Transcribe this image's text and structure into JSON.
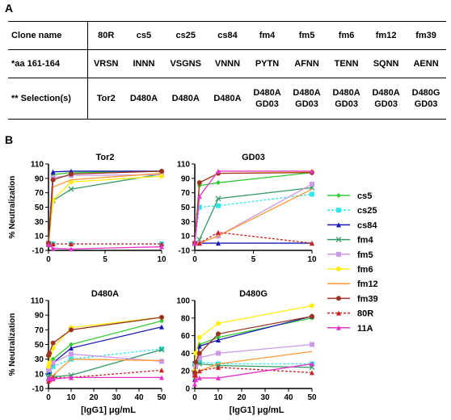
{
  "panel_a_label": "A",
  "panel_b_label": "B",
  "table": {
    "row_headers": [
      "Clone name",
      "*aa 161-164",
      "** Selection(s)"
    ],
    "clones": [
      "80R",
      "cs5",
      "cs25",
      "cs84",
      "fm4",
      "fm5",
      "fm6",
      "fm12",
      "fm39"
    ],
    "aa": [
      "VRSN",
      "INNN",
      "VSGNS",
      "VNNN",
      "PYTN",
      "AFNN",
      "TENN",
      "SQNN",
      "AENN"
    ],
    "selection": [
      [
        "Tor2"
      ],
      [
        "D480A"
      ],
      [
        "D480A"
      ],
      [
        "D480A"
      ],
      [
        "D480A",
        "GD03"
      ],
      [
        "D480A",
        "GD03"
      ],
      [
        "D480A",
        "GD03"
      ],
      [
        "D480A",
        "GD03"
      ],
      [
        "D480G",
        "GD03"
      ]
    ]
  },
  "legend": [
    {
      "name": "cs5",
      "color": "#33cc33",
      "dash": false,
      "marker": "diamond"
    },
    {
      "name": "cs25",
      "color": "#33e6e6",
      "dash": true,
      "marker": "square"
    },
    {
      "name": "cs84",
      "color": "#1a1ab3",
      "dash": false,
      "marker": "triangle"
    },
    {
      "name": "fm4",
      "color": "#339966",
      "dash": false,
      "marker": "x"
    },
    {
      "name": "fm5",
      "color": "#cc99e6",
      "dash": false,
      "marker": "square"
    },
    {
      "name": "fm6",
      "color": "#ffee11",
      "dash": false,
      "marker": "circle"
    },
    {
      "name": "fm12",
      "color": "#ff9933",
      "dash": false,
      "marker": "line"
    },
    {
      "name": "fm39",
      "color": "#993322",
      "dash": false,
      "marker": "circle"
    },
    {
      "name": "80R",
      "color": "#cc2222",
      "dash": true,
      "marker": "triangle"
    },
    {
      "name": "11A",
      "color": "#e633cc",
      "dash": false,
      "marker": "triangle"
    }
  ],
  "chart_data": [
    {
      "type": "line",
      "title": "Tor2",
      "ylabel": "% Neutralization",
      "xlabel": "",
      "xlim": [
        0,
        10
      ],
      "ylim": [
        -10,
        110
      ],
      "xticks": [
        0,
        5,
        10
      ],
      "yticks": [
        -10,
        10,
        30,
        50,
        70,
        90,
        110
      ],
      "x": [
        0,
        0.4,
        2,
        10
      ],
      "series": [
        {
          "name": "cs5",
          "values": [
            0,
            95,
            98,
            100
          ]
        },
        {
          "name": "cs25",
          "values": [
            -1,
            -1,
            -1,
            -1
          ]
        },
        {
          "name": "cs84",
          "values": [
            0,
            99,
            100,
            100
          ]
        },
        {
          "name": "fm4",
          "values": [
            0,
            59,
            75,
            96
          ]
        },
        {
          "name": "fm5",
          "values": [
            0,
            91,
            94,
            95
          ]
        },
        {
          "name": "fm6",
          "values": [
            0,
            60,
            85,
            93
          ]
        },
        {
          "name": "fm12",
          "values": [
            0,
            78,
            88,
            97
          ]
        },
        {
          "name": "fm39",
          "values": [
            0,
            88,
            96,
            100
          ]
        },
        {
          "name": "80R",
          "values": [
            -1,
            -1,
            -1,
            -1
          ]
        },
        {
          "name": "11A",
          "values": [
            -2,
            -7,
            -8,
            -5
          ]
        }
      ]
    },
    {
      "type": "line",
      "title": "GD03",
      "ylabel": "",
      "xlabel": "",
      "xlim": [
        0,
        10
      ],
      "ylim": [
        -10,
        110
      ],
      "xticks": [
        0,
        5,
        10
      ],
      "yticks": [
        -10,
        10,
        30,
        50,
        70,
        90,
        110
      ],
      "x": [
        0,
        0.4,
        2,
        10
      ],
      "series": [
        {
          "name": "cs5",
          "values": [
            0,
            80,
            84,
            98
          ]
        },
        {
          "name": "cs25",
          "values": [
            0,
            50,
            52,
            68
          ]
        },
        {
          "name": "cs84",
          "values": [
            0,
            0,
            0,
            0
          ]
        },
        {
          "name": "fm4",
          "values": [
            0,
            5,
            62,
            77
          ]
        },
        {
          "name": "fm5",
          "values": [
            0,
            0,
            10,
            82
          ]
        },
        {
          "name": "fm6",
          "values": [
            0,
            84,
            97,
            99
          ]
        },
        {
          "name": "fm12",
          "values": [
            0,
            0,
            10,
            75
          ]
        },
        {
          "name": "fm39",
          "values": [
            0,
            84,
            97,
            98
          ]
        },
        {
          "name": "80R",
          "values": [
            0,
            0,
            15,
            0
          ]
        },
        {
          "name": "11A",
          "values": [
            0,
            65,
            100,
            100
          ]
        }
      ]
    },
    {
      "type": "line",
      "title": "D480A",
      "ylabel": "% Neutralization",
      "xlabel": "[IgG1] μg/mL",
      "xlim": [
        0,
        50
      ],
      "ylim": [
        -10,
        110
      ],
      "xticks": [
        0,
        10,
        20,
        30,
        40,
        50
      ],
      "yticks": [
        -10,
        10,
        30,
        50,
        70,
        90,
        110
      ],
      "x": [
        0,
        0.4,
        2,
        10,
        50
      ],
      "series": [
        {
          "name": "cs5",
          "values": [
            12,
            15,
            30,
            50,
            82
          ]
        },
        {
          "name": "cs25",
          "values": [
            10,
            12,
            20,
            30,
            44
          ]
        },
        {
          "name": "cs84",
          "values": [
            12,
            14,
            25,
            45,
            74
          ]
        },
        {
          "name": "fm4",
          "values": [
            5,
            8,
            6,
            8,
            43
          ]
        },
        {
          "name": "fm5",
          "values": [
            15,
            18,
            25,
            37,
            27
          ]
        },
        {
          "name": "fm6",
          "values": [
            20,
            25,
            45,
            73,
            87
          ]
        },
        {
          "name": "fm12",
          "values": [
            2,
            5,
            8,
            30,
            28
          ]
        },
        {
          "name": "fm39",
          "values": [
            35,
            38,
            52,
            70,
            87
          ]
        },
        {
          "name": "80R",
          "values": [
            0,
            2,
            5,
            5,
            15
          ]
        },
        {
          "name": "11A",
          "values": [
            3,
            5,
            3,
            5,
            5
          ]
        }
      ]
    },
    {
      "type": "line",
      "title": "D480G",
      "ylabel": "",
      "xlabel": "[IgG1] μg/mL",
      "xlim": [
        0,
        50
      ],
      "ylim": [
        0,
        100
      ],
      "xticks": [
        0,
        10,
        20,
        30,
        40,
        50
      ],
      "yticks": [
        0,
        20,
        40,
        60,
        80,
        100
      ],
      "x": [
        0,
        0.4,
        2,
        10,
        50
      ],
      "series": [
        {
          "name": "cs5",
          "values": [
            10,
            25,
            50,
            58,
            80
          ]
        },
        {
          "name": "cs25",
          "values": [
            28,
            28,
            30,
            28,
            28
          ]
        },
        {
          "name": "cs84",
          "values": [
            10,
            25,
            48,
            55,
            82
          ]
        },
        {
          "name": "fm4",
          "values": [
            28,
            28,
            28,
            26,
            24
          ]
        },
        {
          "name": "fm5",
          "values": [
            15,
            25,
            35,
            40,
            50
          ]
        },
        {
          "name": "fm6",
          "values": [
            20,
            40,
            58,
            74,
            94
          ]
        },
        {
          "name": "fm12",
          "values": [
            10,
            15,
            20,
            28,
            42
          ]
        },
        {
          "name": "fm39",
          "values": [
            18,
            30,
            40,
            62,
            82
          ]
        },
        {
          "name": "80R",
          "values": [
            15,
            15,
            20,
            24,
            18
          ]
        },
        {
          "name": "11A",
          "values": [
            5,
            10,
            12,
            12,
            28
          ]
        }
      ]
    }
  ]
}
